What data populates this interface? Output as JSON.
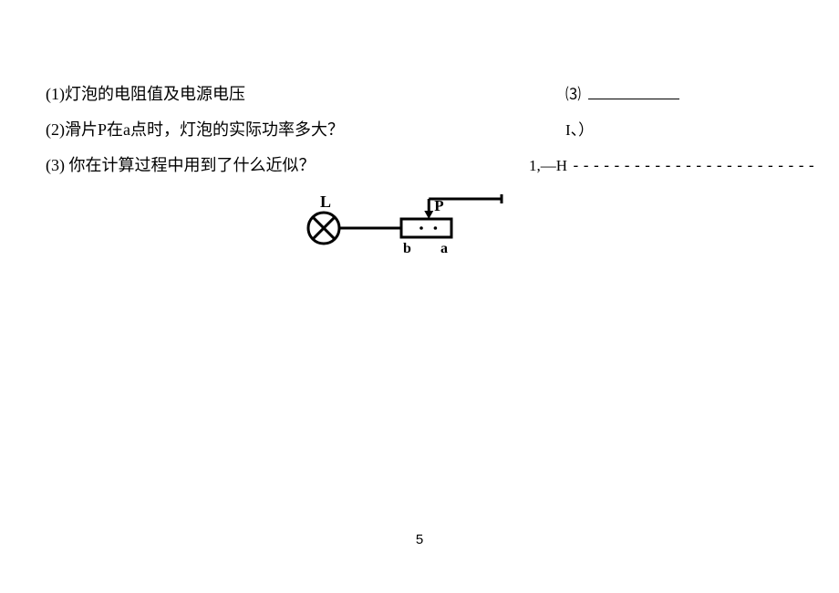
{
  "questions": {
    "q1": {
      "num": "(1)",
      "text": "灯泡的电阻值及电源电压"
    },
    "q2": {
      "num": "(2)",
      "text": "滑片P在a点时，灯泡的实际功率多大？"
    },
    "q3": {
      "num": "(3)",
      "text": "你在计算过程中用到了什么近似？"
    }
  },
  "right_col": {
    "r1_num": "⑶",
    "r2_text": "I、）",
    "r3_prefix": "1,—H",
    "r3_dashes": "------------------------"
  },
  "diagram": {
    "type": "circuit-schematic",
    "labels": {
      "lamp": "L",
      "slider": "P",
      "left_terminal": "b",
      "right_terminal": "a"
    },
    "stroke_color": "#000000",
    "stroke_width": 3,
    "label_fontsize": 18,
    "label_font": "Times New Roman",
    "lamp_radius": 17
  },
  "page_number": "5",
  "background_color": "#ffffff",
  "text_color": "#000000",
  "body_fontsize": 18
}
